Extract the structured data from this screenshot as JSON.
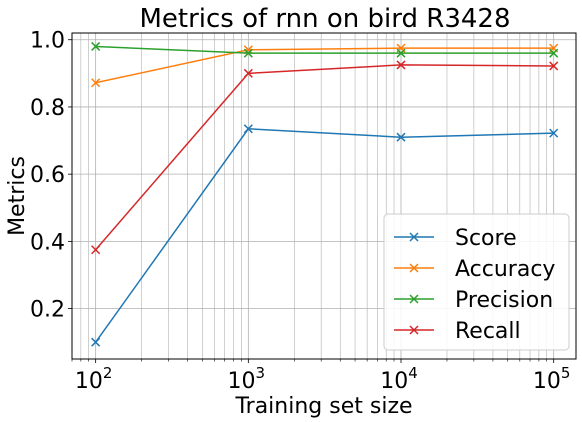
{
  "chart_data": {
    "type": "line",
    "title": "Metrics of rnn on bird R3428",
    "xlabel": "Training set size",
    "ylabel": "Metrics",
    "x": [
      100,
      1000,
      10000,
      100000
    ],
    "x_scale": "log",
    "xlim": [
      70,
      140000
    ],
    "ylim": [
      0.05,
      1.02
    ],
    "x_ticks": [
      {
        "value": 100,
        "base": "10",
        "exp": "2"
      },
      {
        "value": 1000,
        "base": "10",
        "exp": "3"
      },
      {
        "value": 10000,
        "base": "10",
        "exp": "4"
      },
      {
        "value": 100000,
        "base": "10",
        "exp": "5"
      }
    ],
    "y_ticks": [
      {
        "value": 0.2,
        "label": "0.2"
      },
      {
        "value": 0.4,
        "label": "0.4"
      },
      {
        "value": 0.6,
        "label": "0.6"
      },
      {
        "value": 0.8,
        "label": "0.8"
      },
      {
        "value": 1.0,
        "label": "1.0"
      }
    ],
    "grid": true,
    "minor_grid_x": true,
    "legend_position": "bottom-right",
    "marker": "x",
    "series": [
      {
        "name": "Score",
        "color": "#1f77b4",
        "values": [
          0.1,
          0.735,
          0.71,
          0.722
        ]
      },
      {
        "name": "Accuracy",
        "color": "#ff7f0e",
        "values": [
          0.872,
          0.97,
          0.975,
          0.975
        ]
      },
      {
        "name": "Precision",
        "color": "#2ca02c",
        "values": [
          0.98,
          0.96,
          0.96,
          0.96
        ]
      },
      {
        "name": "Recall",
        "color": "#d62728",
        "values": [
          0.375,
          0.9,
          0.925,
          0.922
        ]
      }
    ]
  }
}
